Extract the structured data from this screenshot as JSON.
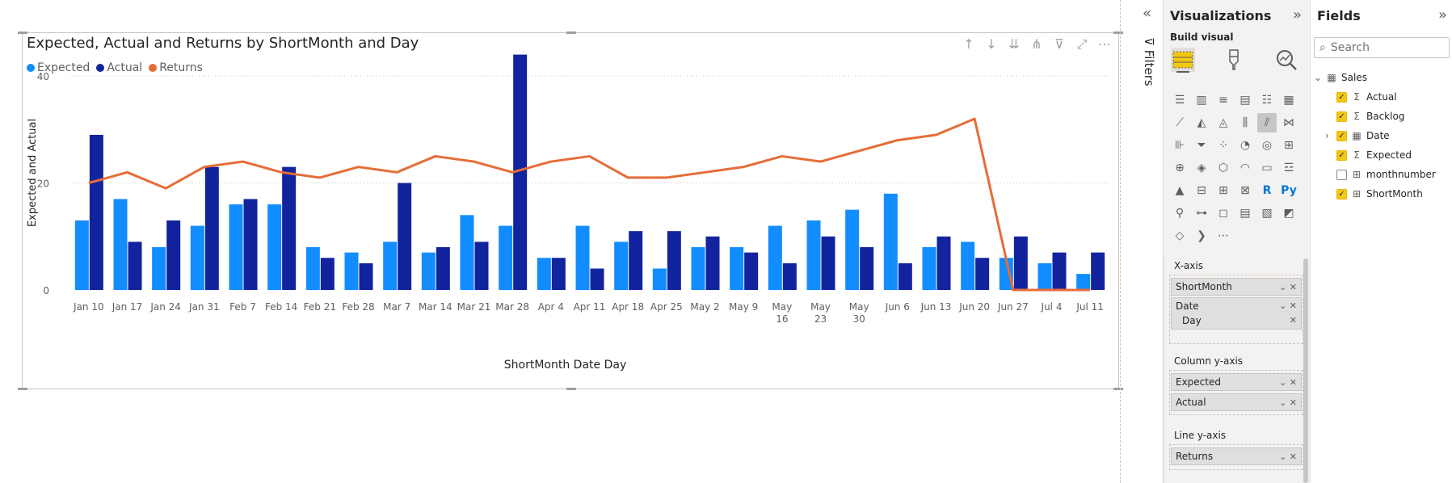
{
  "visual": {
    "title": "Expected, Actual and Returns by ShortMonth and Day",
    "legend": [
      {
        "name": "Expected",
        "color": "#118dff"
      },
      {
        "name": "Actual",
        "color": "#12239e"
      },
      {
        "name": "Returns",
        "color": "#e66c37"
      }
    ],
    "toolbar_icons": [
      "arrow-up-icon",
      "arrow-down-icon",
      "double-arrow-down-icon",
      "hierarchy-expand-icon",
      "filter-icon",
      "focus-mode-icon",
      "more-options-icon"
    ]
  },
  "chart_data": {
    "type": "bar",
    "title": "Expected, Actual and Returns by ShortMonth and Day",
    "xlabel": "ShortMonth Date Day",
    "ylabel": "Expected and Actual",
    "ylim": [
      0,
      45
    ],
    "yticks": [
      0,
      20,
      40
    ],
    "grid": true,
    "legend_position": "top-left",
    "categories": [
      "Jan 10",
      "Jan 17",
      "Jan 24",
      "Jan 31",
      "Feb 7",
      "Feb 14",
      "Feb 21",
      "Feb 28",
      "Mar 7",
      "Mar 14",
      "Mar 21",
      "Mar 28",
      "Apr 4",
      "Apr 11",
      "Apr 18",
      "Apr 25",
      "May 2",
      "May 9",
      "May 16",
      "May 23",
      "May 30",
      "Jun 6",
      "Jun 13",
      "Jun 20",
      "Jun 27",
      "Jul 4",
      "Jul 11"
    ],
    "series": [
      {
        "name": "Expected",
        "type": "bar",
        "color": "#118dff",
        "values": [
          13,
          17,
          8,
          12,
          16,
          16,
          8,
          7,
          9,
          7,
          14,
          12,
          6,
          12,
          9,
          4,
          8,
          8,
          12,
          13,
          15,
          18,
          8,
          9,
          6,
          5,
          3
        ]
      },
      {
        "name": "Actual",
        "type": "bar",
        "color": "#12239e",
        "values": [
          29,
          9,
          13,
          23,
          17,
          23,
          6,
          5,
          20,
          8,
          9,
          44,
          6,
          4,
          11,
          11,
          10,
          7,
          5,
          10,
          8,
          5,
          10,
          6,
          10,
          7,
          7
        ]
      },
      {
        "name": "Returns",
        "type": "line",
        "color": "#e66c37",
        "values": [
          20,
          22,
          19,
          23,
          24,
          22,
          21,
          23,
          22,
          25,
          24,
          22,
          24,
          25,
          21,
          21,
          22,
          23,
          25,
          24,
          26,
          28,
          29,
          32,
          0,
          0,
          0
        ]
      }
    ]
  },
  "filters": {
    "label": "Filters"
  },
  "visualizations": {
    "title": "Visualizations",
    "build_visual_label": "Build visual",
    "x_axis_label": "X-axis",
    "x_axis_fields": [
      "ShortMonth",
      "Date"
    ],
    "x_axis_sub": "Day",
    "column_y_axis_label": "Column y-axis",
    "column_y_axis_fields": [
      "Expected",
      "Actual"
    ],
    "line_y_axis_label": "Line y-axis",
    "line_y_axis_fields": [
      "Returns"
    ],
    "icon_rows": [
      [
        "stacked-bar-icon",
        "stacked-column-icon",
        "clustered-bar-icon",
        "clustered-column-icon",
        "100-bar-icon",
        "100-column-icon"
      ],
      [
        "line-icon",
        "area-icon",
        "stacked-area-icon",
        "line-stacked-column-icon",
        "line-clustered-column-icon",
        "ribbon-icon"
      ],
      [
        "waterfall-icon",
        "funnel-icon",
        "scatter-icon",
        "pie-icon",
        "donut-icon",
        "treemap-icon"
      ],
      [
        "map-icon",
        "filled-map-icon",
        "shape-map-icon",
        "gauge-icon",
        "card-icon",
        "multi-row-card-icon"
      ],
      [
        "kpi-icon",
        "slicer-icon",
        "table-icon",
        "matrix-icon",
        "r-visual-icon",
        "python-visual-icon"
      ],
      [
        "key-influencers-icon",
        "decomposition-tree-icon",
        "qa-icon",
        "smart-narrative-icon",
        "paginated-report-icon",
        "power-apps-icon"
      ],
      [
        "power-automate-icon",
        "get-more-visuals-icon",
        "more-icon"
      ]
    ]
  },
  "fields": {
    "title": "Fields",
    "search_placeholder": "Search",
    "table_name": "Sales",
    "items": [
      {
        "name": "Actual",
        "checked": true,
        "icon": "sigma"
      },
      {
        "name": "Backlog",
        "checked": true,
        "icon": "sigma"
      },
      {
        "name": "Date",
        "checked": true,
        "icon": "calendar"
      },
      {
        "name": "Expected",
        "checked": true,
        "icon": "sigma"
      },
      {
        "name": "monthnumber",
        "checked": false,
        "icon": "table"
      },
      {
        "name": "ShortMonth",
        "checked": true,
        "icon": "table"
      }
    ]
  }
}
